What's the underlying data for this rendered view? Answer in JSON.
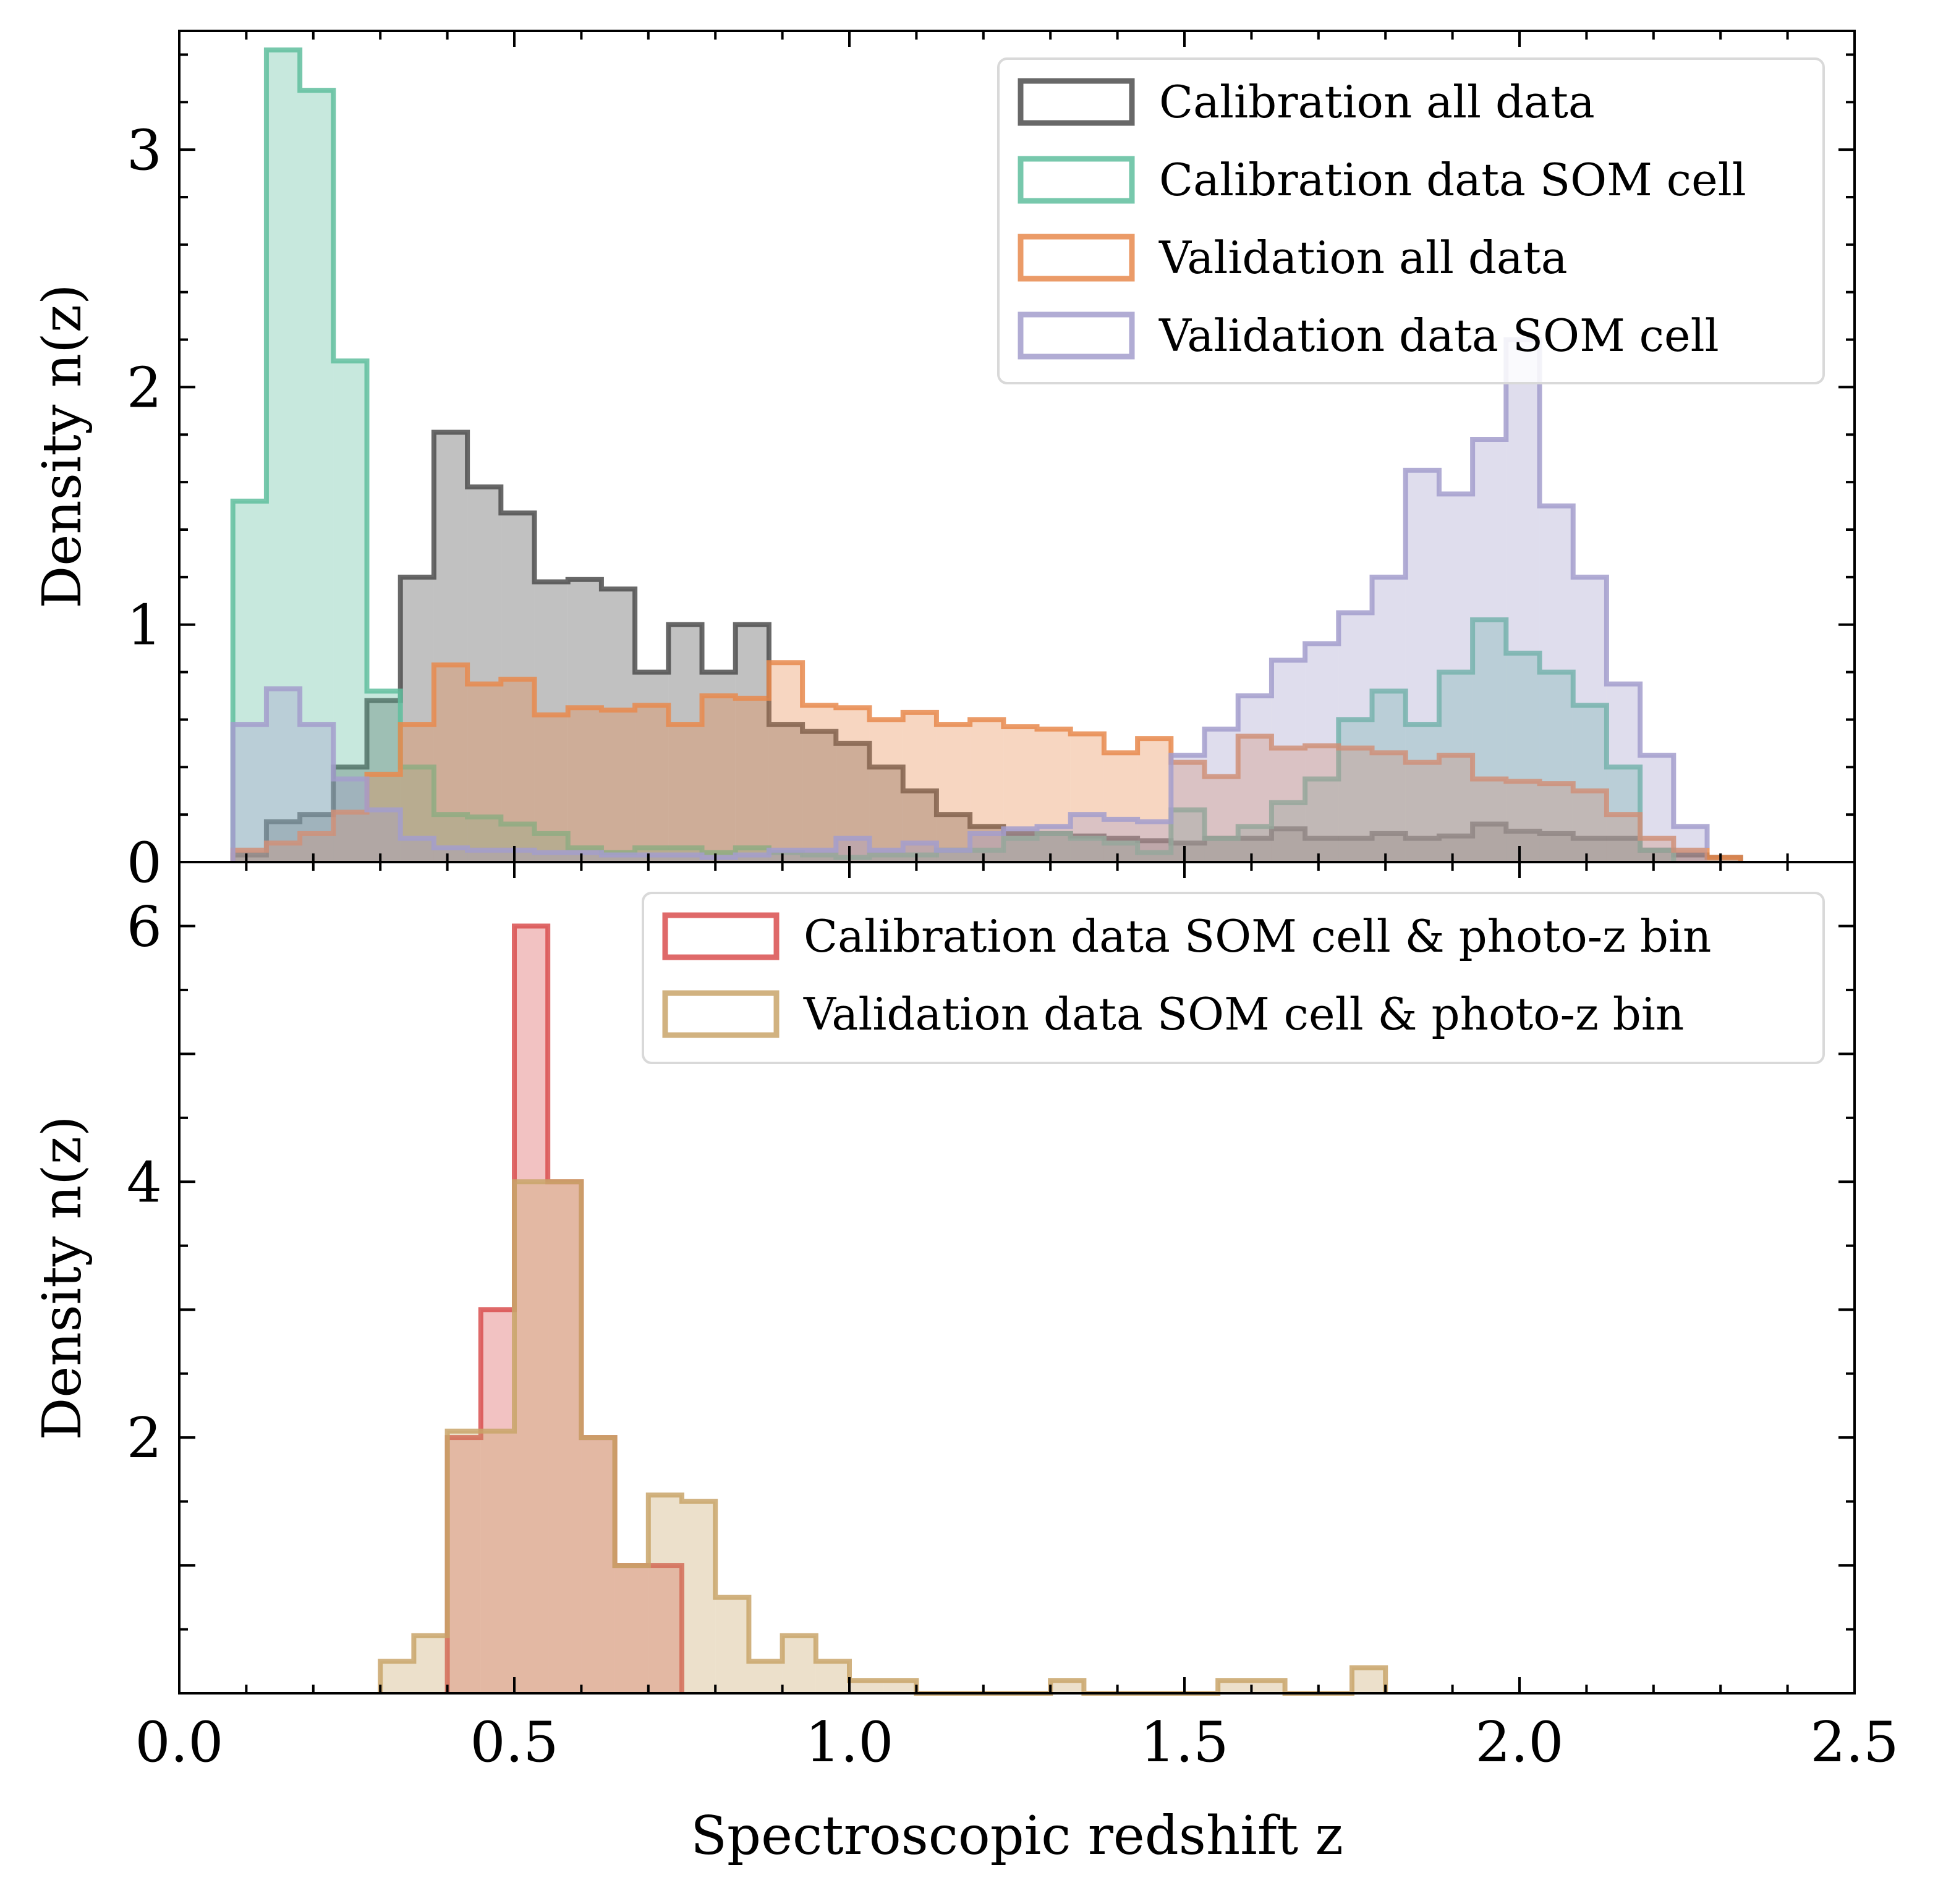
{
  "chart_data": [
    {
      "type": "histogram",
      "panel": "top",
      "ylabel": "Density n(z)",
      "xlim": [
        0.0,
        2.5
      ],
      "ylim": [
        0,
        3.5
      ],
      "yticks": [
        0,
        1,
        2,
        3
      ],
      "legend_position": "top-right",
      "series": [
        {
          "name": "Calibration all data",
          "color": "#4d4d4d",
          "edges": [
            0.08,
            0.13,
            0.18,
            0.23,
            0.28,
            0.33,
            0.38,
            0.43,
            0.48,
            0.53,
            0.58,
            0.63,
            0.68,
            0.73,
            0.78,
            0.83,
            0.88,
            0.93,
            0.98,
            1.03,
            1.08,
            1.13,
            1.18,
            1.23,
            1.28,
            1.33,
            1.38,
            1.43,
            1.48,
            1.53,
            1.58,
            1.63,
            1.68,
            1.73,
            1.78,
            1.83,
            1.88,
            1.93,
            1.98,
            2.03,
            2.08,
            2.13,
            2.18,
            2.23,
            2.28,
            2.33
          ],
          "values": [
            0.03,
            0.17,
            0.2,
            0.4,
            0.68,
            1.2,
            1.81,
            1.58,
            1.47,
            1.18,
            1.19,
            1.15,
            0.8,
            1.0,
            0.8,
            1.0,
            0.58,
            0.55,
            0.5,
            0.4,
            0.3,
            0.2,
            0.15,
            0.12,
            0.12,
            0.11,
            0.1,
            0.09,
            0.08,
            0.1,
            0.1,
            0.14,
            0.1,
            0.1,
            0.12,
            0.1,
            0.11,
            0.16,
            0.13,
            0.12,
            0.1,
            0.1,
            0.05,
            0.03,
            0.02
          ]
        },
        {
          "name": "Calibration data SOM cell",
          "color": "#5fbe9e",
          "edges": [
            0.08,
            0.13,
            0.18,
            0.23,
            0.28,
            0.33,
            0.38,
            0.43,
            0.48,
            0.53,
            0.58,
            0.63,
            0.68,
            0.73,
            0.78,
            0.83,
            0.88,
            0.93,
            0.98,
            1.03,
            1.08,
            1.13,
            1.18,
            1.23,
            1.28,
            1.33,
            1.38,
            1.43,
            1.48,
            1.53,
            1.58,
            1.63,
            1.68,
            1.73,
            1.78,
            1.83,
            1.88,
            1.93,
            1.98,
            2.03,
            2.08,
            2.13,
            2.18,
            2.23
          ],
          "values": [
            1.52,
            3.42,
            3.25,
            2.11,
            0.72,
            0.4,
            0.2,
            0.19,
            0.16,
            0.12,
            0.06,
            0.04,
            0.06,
            0.06,
            0.04,
            0.06,
            0.04,
            0.03,
            0.02,
            0.03,
            0.03,
            0.05,
            0.05,
            0.1,
            0.12,
            0.1,
            0.08,
            0.04,
            0.22,
            0.1,
            0.15,
            0.25,
            0.35,
            0.6,
            0.72,
            0.58,
            0.8,
            1.02,
            0.88,
            0.8,
            0.66,
            0.4,
            0.05
          ]
        },
        {
          "name": "Validation all data",
          "color": "#e8894d",
          "edges": [
            0.08,
            0.13,
            0.18,
            0.23,
            0.28,
            0.33,
            0.38,
            0.43,
            0.48,
            0.53,
            0.58,
            0.63,
            0.68,
            0.73,
            0.78,
            0.83,
            0.88,
            0.93,
            0.98,
            1.03,
            1.08,
            1.13,
            1.18,
            1.23,
            1.28,
            1.33,
            1.38,
            1.43,
            1.48,
            1.53,
            1.58,
            1.63,
            1.68,
            1.73,
            1.78,
            1.83,
            1.88,
            1.93,
            1.98,
            2.03,
            2.08,
            2.13,
            2.18,
            2.23,
            2.28,
            2.33
          ],
          "values": [
            0.05,
            0.08,
            0.12,
            0.21,
            0.37,
            0.58,
            0.83,
            0.75,
            0.77,
            0.62,
            0.65,
            0.64,
            0.66,
            0.58,
            0.7,
            0.69,
            0.84,
            0.66,
            0.65,
            0.6,
            0.63,
            0.58,
            0.6,
            0.57,
            0.56,
            0.54,
            0.46,
            0.52,
            0.42,
            0.36,
            0.53,
            0.48,
            0.49,
            0.48,
            0.46,
            0.42,
            0.45,
            0.35,
            0.34,
            0.33,
            0.3,
            0.2,
            0.1,
            0.05,
            0.02
          ]
        },
        {
          "name": "Validation data SOM cell",
          "color": "#a39dcc",
          "edges": [
            0.08,
            0.13,
            0.18,
            0.23,
            0.28,
            0.33,
            0.38,
            0.43,
            0.48,
            0.53,
            0.58,
            0.63,
            0.68,
            0.73,
            0.78,
            0.83,
            0.88,
            0.93,
            0.98,
            1.03,
            1.08,
            1.13,
            1.18,
            1.23,
            1.28,
            1.33,
            1.38,
            1.43,
            1.48,
            1.53,
            1.58,
            1.63,
            1.68,
            1.73,
            1.78,
            1.83,
            1.88,
            1.93,
            1.98,
            2.03,
            2.08,
            2.13,
            2.18,
            2.23,
            2.28
          ],
          "values": [
            0.58,
            0.73,
            0.58,
            0.35,
            0.22,
            0.1,
            0.06,
            0.05,
            0.05,
            0.04,
            0.04,
            0.03,
            0.03,
            0.03,
            0.02,
            0.03,
            0.05,
            0.05,
            0.1,
            0.05,
            0.08,
            0.05,
            0.12,
            0.14,
            0.15,
            0.2,
            0.18,
            0.17,
            0.45,
            0.56,
            0.7,
            0.85,
            0.92,
            1.05,
            1.2,
            1.65,
            1.55,
            1.78,
            2.2,
            1.5,
            1.2,
            0.75,
            0.45,
            0.15,
            0.06
          ]
        }
      ]
    },
    {
      "type": "histogram",
      "panel": "bottom",
      "xlabel": "Spectroscopic redshift z",
      "ylabel": "Density n(z)",
      "xlim": [
        0.0,
        2.5
      ],
      "ylim": [
        0,
        6.5
      ],
      "xticks": [
        "0.0",
        "0.5",
        "1.0",
        "1.5",
        "2.0",
        "2.5"
      ],
      "yticks": [
        2,
        4,
        6
      ],
      "legend_position": "top-right",
      "series": [
        {
          "name": "Calibration data SOM cell & photo-z bin",
          "color": "#d94f4f",
          "edges": [
            0.4,
            0.45,
            0.5,
            0.55,
            0.6,
            0.65,
            0.7,
            0.75
          ],
          "values": [
            2.0,
            3.0,
            6.0,
            4.0,
            2.0,
            1.0,
            1.0
          ]
        },
        {
          "name": "Validation data SOM cell & photo-z bin",
          "color": "#c9a56a",
          "edges": [
            0.3,
            0.35,
            0.4,
            0.45,
            0.5,
            0.55,
            0.6,
            0.65,
            0.7,
            0.75,
            0.8,
            0.85,
            0.9,
            0.95,
            1.0,
            1.05,
            1.1,
            1.15,
            1.2,
            1.25,
            1.3,
            1.35,
            1.4,
            1.45,
            1.5,
            1.55,
            1.6,
            1.65,
            1.7,
            1.75,
            1.8
          ],
          "values": [
            0.25,
            0.45,
            2.05,
            2.05,
            4.0,
            4.0,
            2.0,
            1.0,
            1.55,
            1.5,
            0.75,
            0.25,
            0.45,
            0.25,
            0.1,
            0.1,
            0.0,
            0.0,
            0.0,
            0.0,
            0.1,
            0.0,
            0.0,
            0.0,
            0.0,
            0.1,
            0.1,
            0.0,
            0.0,
            0.2
          ]
        }
      ]
    }
  ]
}
